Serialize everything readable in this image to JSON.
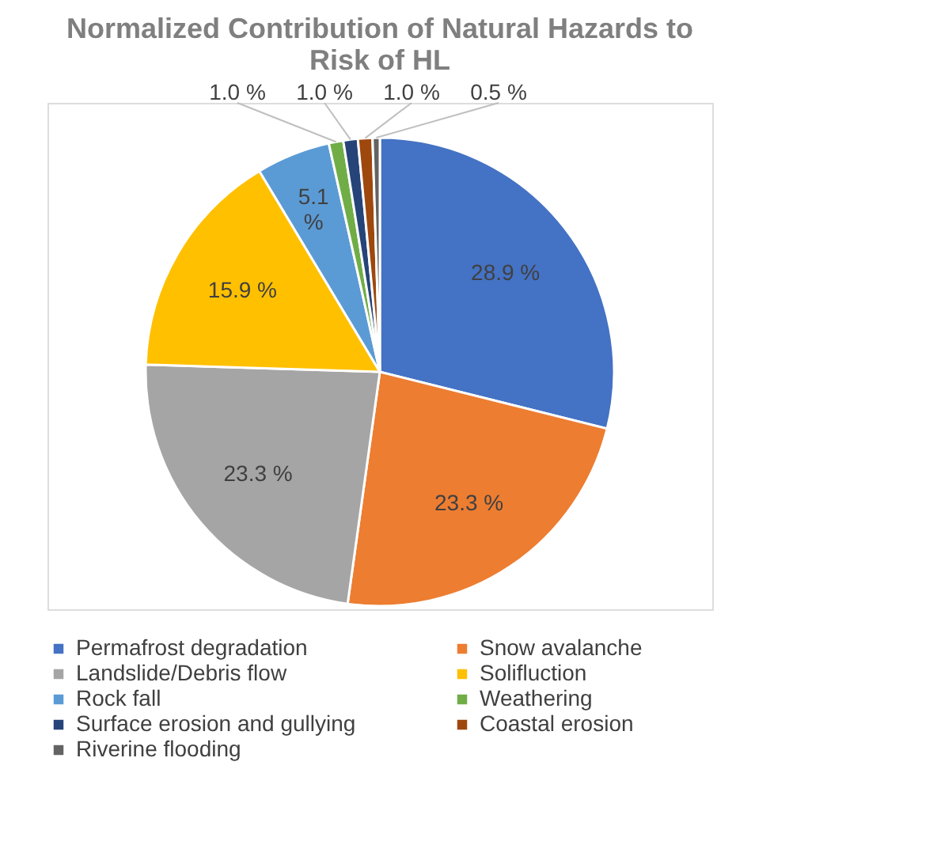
{
  "chart_data": {
    "type": "pie",
    "title": [
      "Normalized Contribution of Natural Hazards to",
      "Risk of HL"
    ],
    "categories": [
      "Permafrost degradation",
      "Snow avalanche",
      "Landslide/Debris flow",
      "Solifluction",
      "Rock fall",
      "Weathering",
      "Surface erosion and gullying",
      "Coastal erosion",
      "Riverine flooding"
    ],
    "values": [
      28.9,
      23.3,
      23.3,
      15.9,
      5.1,
      1.0,
      1.0,
      1.0,
      0.5
    ],
    "value_labels": [
      "28.9 %",
      "23.3 %",
      "23.3 %",
      "15.9 %",
      "5.1 %",
      "1.0 %",
      "1.0 %",
      "1.0 %",
      "0.5 %"
    ],
    "colors": [
      "#4472c4",
      "#ed7d31",
      "#a5a5a5",
      "#ffc000",
      "#5b9bd5",
      "#70ad47",
      "#264478",
      "#9e480e",
      "#636363"
    ],
    "legend": "bottom"
  }
}
